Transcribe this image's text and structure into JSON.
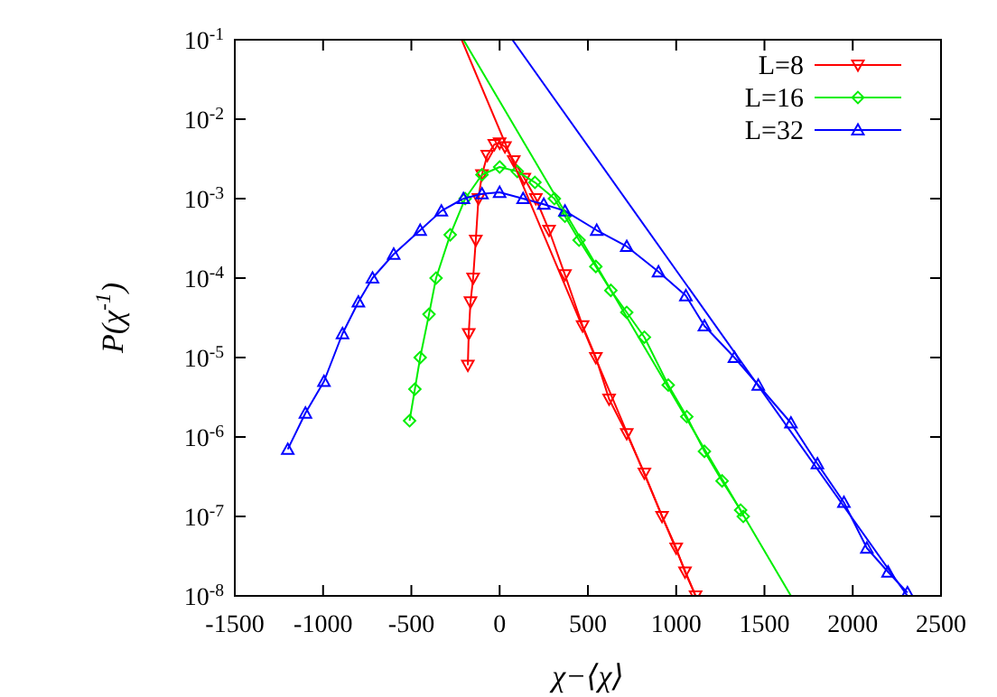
{
  "chart_data": {
    "type": "line",
    "xlabel": "χ−⟨χ⟩",
    "ylabel": "P(χ$^{-1}$)",
    "log": "y",
    "xlim": [
      -1500,
      2500
    ],
    "xticks": [
      -1500,
      -1000,
      -500,
      0,
      500,
      1000,
      1500,
      2000,
      2500
    ],
    "ylim": [
      1e-08,
      0.1
    ],
    "yticks": [
      {
        "value": 1e-08,
        "label": "10$^{-8}$"
      },
      {
        "value": 1e-07,
        "label": "10$^{-7}$"
      },
      {
        "value": 1e-06,
        "label": "10$^{-6}$"
      },
      {
        "value": 1e-05,
        "label": "10$^{-5}$"
      },
      {
        "value": 0.0001,
        "label": "10$^{-4}$"
      },
      {
        "value": 0.001,
        "label": "10$^{-3}$"
      },
      {
        "value": 0.01,
        "label": "10$^{-2}$"
      },
      {
        "value": 0.1,
        "label": "10$^{-1}$"
      }
    ],
    "grid": false,
    "legend": "top right",
    "series": [
      {
        "name": "L=8",
        "color": "#ff0000",
        "marker": "triangle-down",
        "x": [
          -180,
          -175,
          -165,
          -150,
          -135,
          -120,
          -100,
          -70,
          -30,
          0,
          30,
          80,
          140,
          205,
          280,
          370,
          470,
          545,
          620,
          720,
          820,
          920,
          1000,
          1050,
          1110
        ],
        "values": [
          8e-06,
          2e-05,
          5e-05,
          0.0001,
          0.0003,
          0.001,
          0.002,
          0.0035,
          0.0048,
          0.005,
          0.0045,
          0.003,
          0.0018,
          0.001,
          0.0004,
          0.00011,
          2.5e-05,
          1e-05,
          3e-06,
          1.1e-06,
          3.5e-07,
          1e-07,
          4e-08,
          2e-08,
          1e-08
        ]
      },
      {
        "name": "L=16",
        "color": "#00ee00",
        "marker": "diamond",
        "x": [
          -510,
          -480,
          -450,
          -400,
          -360,
          -280,
          -195,
          -100,
          0,
          100,
          200,
          310,
          370,
          450,
          545,
          630,
          720,
          820,
          955,
          1060,
          1160,
          1260,
          1365,
          1380
        ],
        "values": [
          1.6e-06,
          4e-06,
          1e-05,
          3.5e-05,
          0.0001,
          0.00035,
          0.001,
          0.002,
          0.0025,
          0.0022,
          0.0016,
          0.001,
          0.0006,
          0.0003,
          0.00014,
          7e-05,
          3.7e-05,
          1.8e-05,
          4.5e-06,
          1.8e-06,
          6.6e-07,
          2.8e-07,
          1.2e-07,
          1e-07
        ]
      },
      {
        "name": "L=32",
        "color": "#0000ff",
        "marker": "triangle",
        "x": [
          -1200,
          -1100,
          -995,
          -890,
          -800,
          -720,
          -600,
          -450,
          -330,
          -205,
          -100,
          0,
          133,
          250,
          370,
          550,
          720,
          900,
          1055,
          1160,
          1330,
          1465,
          1650,
          1800,
          1950,
          2080,
          2200,
          2310
        ],
        "values": [
          7e-07,
          2e-06,
          5e-06,
          2e-05,
          5e-05,
          0.0001,
          0.0002,
          0.0004,
          0.0007,
          0.001,
          0.00115,
          0.0012,
          0.001,
          0.00085,
          0.0007,
          0.0004,
          0.00025,
          0.00012,
          6e-05,
          2.5e-05,
          1e-05,
          4.5e-06,
          1.5e-06,
          4.6e-07,
          1.5e-07,
          4e-08,
          2e-08,
          1.1e-08
        ]
      },
      {
        "color": "#ff0000",
        "marker": "none",
        "x": [
          -215,
          1110
        ],
        "values": [
          0.1,
          1e-08
        ]
      },
      {
        "color": "#00ee00",
        "marker": "none",
        "x": [
          -205,
          1650
        ],
        "values": [
          0.1,
          1e-08
        ]
      },
      {
        "color": "#0000ff",
        "marker": "none",
        "x": [
          72,
          2310
        ],
        "values": [
          0.1,
          1e-08
        ]
      }
    ]
  }
}
